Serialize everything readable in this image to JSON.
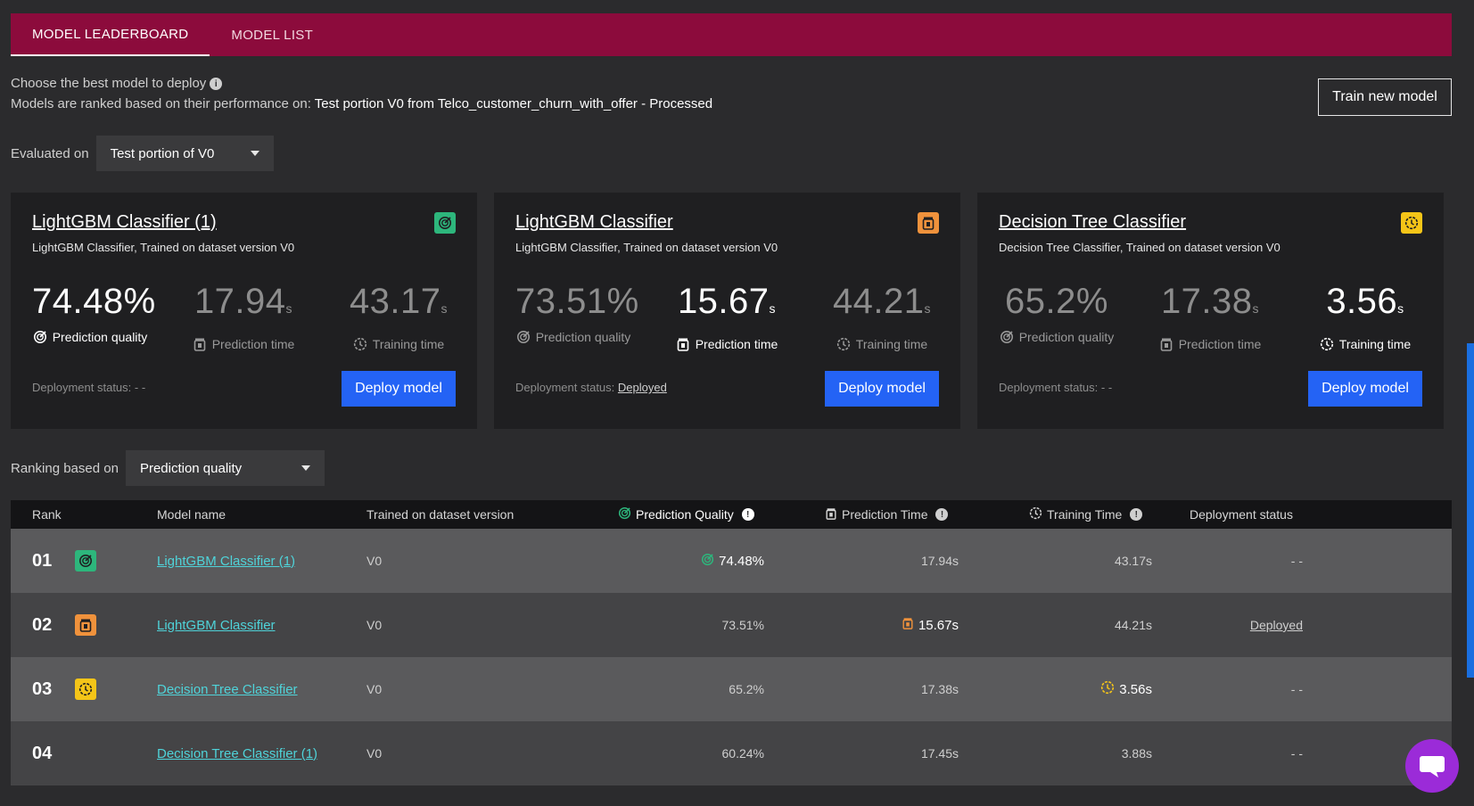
{
  "tabs": [
    {
      "label": "MODEL LEADERBOARD",
      "active": true
    },
    {
      "label": "MODEL LIST",
      "active": false
    }
  ],
  "intro": {
    "line1": "Choose the best model to deploy",
    "line2_prefix": "Models are ranked based on their performance on:",
    "line2_value": "Test portion V0 from Telco_customer_churn_with_offer - Processed"
  },
  "train_button": "Train new model",
  "evaluated_on": {
    "label": "Evaluated on",
    "value": "Test portion of V0"
  },
  "ranking": {
    "label": "Ranking based on",
    "value": "Prediction quality"
  },
  "colors": {
    "accent": "#8c0b3c",
    "deploy": "#2463f5",
    "quality": "#2db67c",
    "pred_time": "#f0923c",
    "train_time": "#f5c518",
    "link": "#4fd3d9"
  },
  "cards": [
    {
      "title": "LightGBM Classifier (1)",
      "subtitle": "LightGBM Classifier, Trained on dataset version V0",
      "badge": "quality-icon",
      "quality": "74.48%",
      "pred_time": "17.94",
      "train_time": "43.17",
      "unit": "s",
      "quality_label": "Prediction quality",
      "pred_time_label": "Prediction time",
      "train_time_label": "Training time",
      "deployment_label": "Deployment status:",
      "deployment_value": "- -",
      "deploy_button": "Deploy model"
    },
    {
      "title": "LightGBM Classifier",
      "subtitle": "LightGBM Classifier, Trained on dataset version V0",
      "badge": "prediction-time-icon",
      "quality": "73.51%",
      "pred_time": "15.67",
      "train_time": "44.21",
      "unit": "s",
      "quality_label": "Prediction quality",
      "pred_time_label": "Prediction time",
      "train_time_label": "Training time",
      "deployment_label": "Deployment status:",
      "deployment_value": "Deployed",
      "deploy_button": "Deploy model"
    },
    {
      "title": "Decision Tree Classifier",
      "subtitle": "Decision Tree Classifier, Trained on dataset version V0",
      "badge": "training-time-icon",
      "quality": "65.2%",
      "pred_time": "17.38",
      "train_time": "3.56",
      "unit": "s",
      "quality_label": "Prediction quality",
      "pred_time_label": "Prediction time",
      "train_time_label": "Training time",
      "deployment_label": "Deployment status:",
      "deployment_value": "- -",
      "deploy_button": "Deploy model"
    }
  ],
  "table": {
    "headers": {
      "rank": "Rank",
      "model": "Model name",
      "dataset": "Trained on dataset version",
      "quality": "Prediction Quality",
      "pred_time": "Prediction Time",
      "train_time": "Training Time",
      "deployment": "Deployment status"
    },
    "rows": [
      {
        "rank": "01",
        "name": "LightGBM Classifier (1)",
        "dataset": "V0",
        "quality": "74.48%",
        "pred_time": "17.94s",
        "train_time": "43.17s",
        "deployment": "- -",
        "badge": "quality-icon"
      },
      {
        "rank": "02",
        "name": "LightGBM Classifier",
        "dataset": "V0",
        "quality": "73.51%",
        "pred_time": "15.67s",
        "train_time": "44.21s",
        "deployment": "Deployed",
        "badge": "prediction-time-icon"
      },
      {
        "rank": "03",
        "name": "Decision Tree Classifier",
        "dataset": "V0",
        "quality": "65.2%",
        "pred_time": "17.38s",
        "train_time": "3.56s",
        "deployment": "- -",
        "badge": "training-time-icon"
      },
      {
        "rank": "04",
        "name": "Decision Tree Classifier (1)",
        "dataset": "V0",
        "quality": "60.24%",
        "pred_time": "17.45s",
        "train_time": "3.88s",
        "deployment": "- -",
        "badge": ""
      }
    ]
  }
}
